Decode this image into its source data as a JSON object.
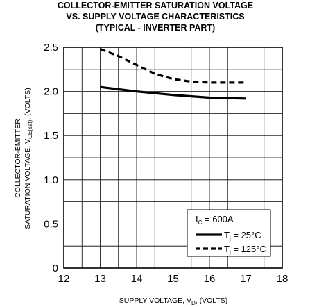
{
  "chart_data": {
    "type": "line",
    "title": [
      "COLLECTOR-EMITTER SATURATION VOLTAGE",
      "VS. SUPPLY VOLTAGE CHARACTERISTICS",
      "(TYPICAL - INVERTER PART)"
    ],
    "xlabel": {
      "main": "SUPPLY VOLTAGE, V",
      "sub": "D",
      "suffix": ", (VOLTS)"
    },
    "ylabel": {
      "line1": "COLLECTOR-EMITTER",
      "line2_main": "SATURATION VOLTAGE, V",
      "line2_sub": "CE(sat)",
      "line2_suffix": ", (VOLTS)"
    },
    "xlim": [
      12,
      18
    ],
    "ylim": [
      0,
      2.5
    ],
    "x_ticks": [
      "12",
      "13",
      "14",
      "15",
      "16",
      "17",
      "18"
    ],
    "y_ticks": [
      "0",
      "0.5",
      "1.0",
      "1.5",
      "2.0",
      "2.5"
    ],
    "grid": true,
    "legend": {
      "placement": "bottom-right",
      "header_main": "I",
      "header_sub": "C",
      "header_suffix": " = 600A"
    },
    "series": [
      {
        "name_main": "T",
        "name_sub": "j",
        "name_suffix": " = 25°C",
        "style": "solid",
        "color": "#000000",
        "x": [
          13,
          14,
          15,
          16,
          17
        ],
        "y": [
          2.05,
          2.0,
          1.96,
          1.93,
          1.92
        ]
      },
      {
        "name_main": "T",
        "name_sub": "j",
        "name_suffix": " = 125°C",
        "style": "dashed",
        "color": "#000000",
        "x": [
          13,
          13.5,
          14,
          14.5,
          15,
          15.5,
          16,
          17
        ],
        "y": [
          2.48,
          2.4,
          2.3,
          2.2,
          2.14,
          2.11,
          2.1,
          2.1
        ]
      }
    ]
  }
}
